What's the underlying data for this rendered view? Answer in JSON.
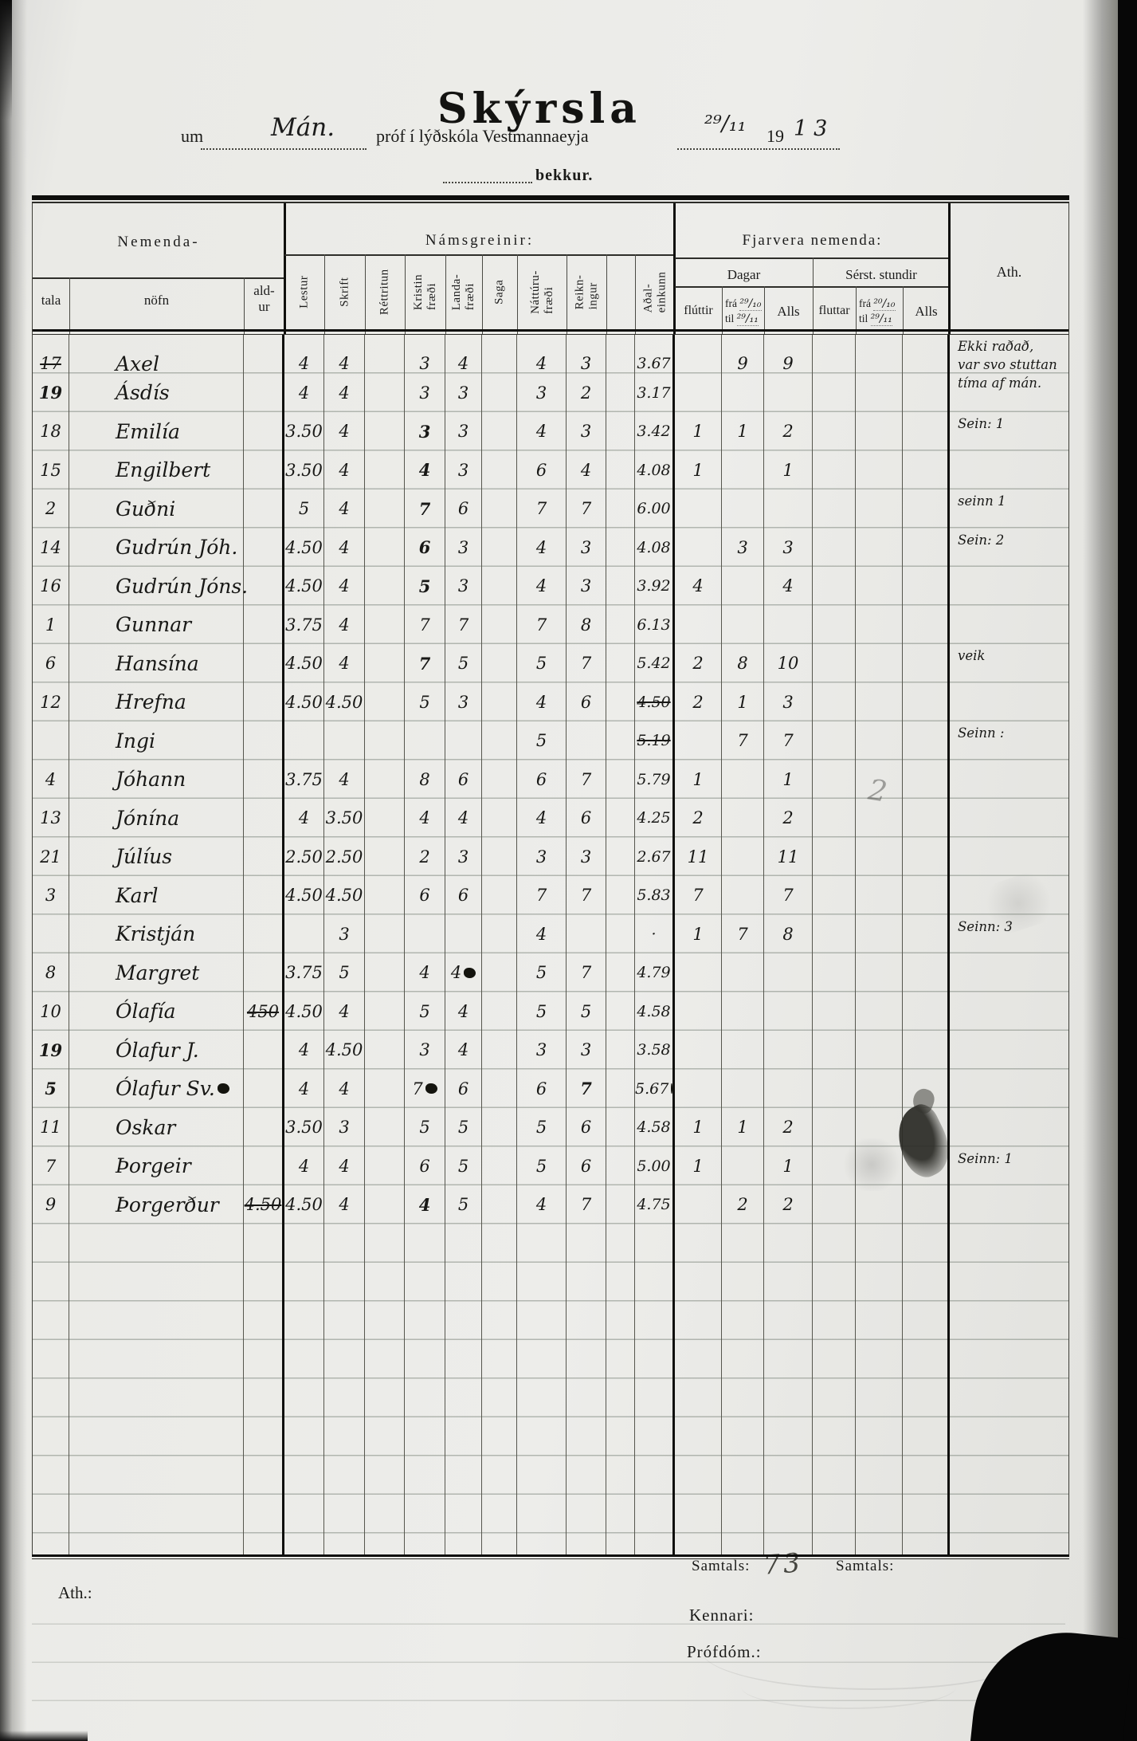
{
  "header": {
    "title": "Skýrsla",
    "um": "um",
    "subject_hw": "Mán.",
    "prof_line": "próf í lýðskóla Vestmannaeyja",
    "date_hw": "²⁹/₁₁",
    "year_print": "19",
    "year_hw": "13",
    "bekkur": "bekkur."
  },
  "table_head": {
    "nemenda": "Nemenda-",
    "tala": "tala",
    "nofn": "nöfn",
    "aldur": "ald-\nur",
    "namsgreinir": "Námsgreinir:",
    "subjects": [
      "Lestur",
      "Skrift",
      "Réttritun",
      "Kristin\nfræði",
      "Landa-\nfræði",
      "Saga",
      "Náttúru-\nfræði",
      "Reikn-\ningur",
      "",
      "Aðal-\neinkunn"
    ],
    "fjarvera": "Fjarvera nemenda:",
    "dagar": "Dagar",
    "serst": "Sérst. stundir",
    "fluttir": "flúttir",
    "fluttar": "fluttar",
    "alls": "Alls",
    "fra": "frá",
    "til": "til",
    "dagar_fra_hw": "²⁹/₁₀",
    "dagar_til_hw": "²⁹/₁₁",
    "stundir_fra_hw": "²⁰/₁₀",
    "stundir_til_hw": "²⁹/₁₁",
    "ath": "Ath."
  },
  "rows": [
    {
      "tala": "17",
      "tala_class": "struck",
      "nofn": "Axel",
      "lestur": "4",
      "skrift": "4",
      "kristin": "3",
      "landa": "4",
      "natturu": "4",
      "reikningur": "3",
      "adal": "3.67",
      "d_fratil": "9",
      "d_alls": "9",
      "ath": "Ekki raðað,\nvar svo stuttan\ntíma af mán."
    },
    {
      "tala": "19",
      "tala_class": "bold",
      "nofn": "Ásdís",
      "lestur": "4",
      "skrift": "4",
      "kristin": "3",
      "landa": "3",
      "natturu": "3",
      "reikningur": "2",
      "adal": "3.17"
    },
    {
      "tala": "18",
      "nofn": "Emilía",
      "lestur": "3.50",
      "skrift": "4",
      "kristin": "3",
      "kristin_class": "bold",
      "landa": "3",
      "natturu": "4",
      "reikningur": "3",
      "adal": "3.42",
      "d_fluttir": "1",
      "d_fratil": "1",
      "d_alls": "2",
      "ath": "Sein: 1"
    },
    {
      "tala": "15",
      "nofn": "Engilbert",
      "lestur": "3.50",
      "skrift": "4",
      "kristin": "4",
      "kristin_class": "bold",
      "landa": "3",
      "natturu": "6",
      "reikningur": "4",
      "adal": "4.08",
      "d_fluttir": "1",
      "d_alls": "1"
    },
    {
      "tala": "2",
      "nofn": "Guðni",
      "lestur": "5",
      "skrift": "4",
      "kristin": "7",
      "kristin_class": "bold",
      "landa": "6",
      "natturu": "7",
      "reikningur": "7",
      "adal": "6.00",
      "ath": "seinn 1"
    },
    {
      "tala": "14",
      "nofn": "Gudrún Jóh.",
      "lestur": "4.50",
      "skrift": "4",
      "kristin": "6",
      "kristin_class": "bold",
      "landa": "3",
      "natturu": "4",
      "reikningur": "3",
      "adal": "4.08",
      "d_fratil": "3",
      "d_alls": "3",
      "ath": "Sein: 2"
    },
    {
      "tala": "16",
      "nofn": "Gudrún Jóns.",
      "lestur": "4.50",
      "skrift": "4",
      "kristin": "5",
      "kristin_class": "bold",
      "landa": "3",
      "natturu": "4",
      "reikningur": "3",
      "adal": "3.92",
      "d_fluttir": "4",
      "d_alls": "4"
    },
    {
      "tala": "1",
      "nofn": "Gunnar",
      "lestur": "3.75",
      "skrift": "4",
      "kristin": "7",
      "landa": "7",
      "natturu": "7",
      "reikningur": "8",
      "adal": "6.13"
    },
    {
      "tala": "6",
      "nofn": "Hansína",
      "lestur": "4.50",
      "skrift": "4",
      "kristin": "7",
      "kristin_class": "bold",
      "landa": "5",
      "natturu": "5",
      "reikningur": "7",
      "adal": "5.42",
      "d_fluttir": "2",
      "d_fratil": "8",
      "d_alls": "10",
      "ath": "veik"
    },
    {
      "tala": "12",
      "nofn": "Hrefna",
      "lestur": "4.50",
      "skrift": "4.50",
      "kristin": "5",
      "landa": "3",
      "natturu": "4",
      "reikningur": "6",
      "adal": "4.50",
      "adal_class": "struck",
      "d_fluttir": "2",
      "d_fratil": "1",
      "d_alls": "3"
    },
    {
      "nofn": "Ingi",
      "natturu": "5",
      "adal": "5.19",
      "adal_class": "struck",
      "d_fratil": "7",
      "d_alls": "7",
      "ath": "Seinn :"
    },
    {
      "tala": "4",
      "nofn": "Jóhann",
      "lestur": "3.75",
      "skrift": "4",
      "kristin": "8",
      "landa": "6",
      "natturu": "6",
      "reikningur": "7",
      "adal": "5.79",
      "d_fluttir": "1",
      "d_alls": "1"
    },
    {
      "tala": "13",
      "nofn": "Jónína",
      "lestur": "4",
      "skrift": "3.50",
      "kristin": "4",
      "landa": "4",
      "natturu": "4",
      "reikningur": "6",
      "adal": "4.25",
      "d_fluttir": "2",
      "d_alls": "2"
    },
    {
      "tala": "21",
      "nofn": "Júlíus",
      "lestur": "2.50",
      "skrift": "2.50",
      "kristin": "2",
      "landa": "3",
      "natturu": "3",
      "reikningur": "3",
      "adal": "2.67",
      "d_fluttir": "11",
      "d_alls": "11"
    },
    {
      "tala": "3",
      "nofn": "Karl",
      "lestur": "4.50",
      "skrift": "4.50",
      "kristin": "6",
      "landa": "6",
      "natturu": "7",
      "reikningur": "7",
      "adal": "5.83",
      "d_fluttir": "7",
      "d_alls": "7"
    },
    {
      "nofn": "Kristján",
      "skrift": "3",
      "natturu": "4",
      "adal": "·",
      "d_fluttir": "1",
      "d_fratil": "7",
      "d_alls": "8",
      "ath": "Seinn: 3"
    },
    {
      "tala": "8",
      "nofn": "Margret",
      "lestur": "3.75",
      "skrift": "5",
      "kristin": "4",
      "landa": "4",
      "landa_class": "blot",
      "natturu": "5",
      "reikningur": "7",
      "adal": "4.79"
    },
    {
      "tala": "10",
      "nofn": "Ólafía",
      "aldur": "450",
      "aldur_class": "struck",
      "lestur": "4.50",
      "skrift": "4",
      "kristin": "5",
      "landa": "4",
      "natturu": "5",
      "reikningur": "5",
      "adal": "4.58"
    },
    {
      "tala": "19",
      "tala_class": "bold",
      "nofn": "Ólafur J.",
      "lestur": "4",
      "skrift": "4.50",
      "kristin": "3",
      "landa": "4",
      "natturu": "3",
      "reikningur": "3",
      "adal": "3.58"
    },
    {
      "tala": "5",
      "tala_class": "bold",
      "nofn": "Ólafur Sv.",
      "nofn_class": "blot",
      "lestur": "4",
      "skrift": "4",
      "kristin": "7",
      "kristin_class": "blot",
      "landa": "6",
      "natturu": "6",
      "reikningur": "7",
      "reikningur_class": "bold",
      "adal": "5.67",
      "adal_class": "blot"
    },
    {
      "tala": "11",
      "nofn": "Oskar",
      "lestur": "3.50",
      "skrift": "3",
      "kristin": "5",
      "landa": "5",
      "natturu": "5",
      "reikningur": "6",
      "adal": "4.58",
      "d_fluttir": "1",
      "d_fratil": "1",
      "d_alls": "2"
    },
    {
      "tala": "7",
      "nofn": "Þorgeir",
      "lestur": "4",
      "skrift": "4",
      "kristin": "6",
      "landa": "5",
      "natturu": "5",
      "reikningur": "6",
      "adal": "5.00",
      "d_fluttir": "1",
      "d_alls": "1",
      "ath": "Seinn: 1"
    },
    {
      "tala": "9",
      "nofn": "Þorgerður",
      "aldur": "4.50",
      "aldur_class": "struck",
      "lestur": "4.50",
      "skrift": "4",
      "kristin": "4",
      "kristin_class": "bold",
      "landa": "5",
      "natturu": "4",
      "reikningur": "7",
      "adal": "4.75",
      "d_fratil": "2",
      "d_alls": "2"
    }
  ],
  "margin_marks": {
    "pencil_2": "2"
  },
  "footer": {
    "ath_label": "Ath.:",
    "samtals_label_1": "Samtals:",
    "samtals_value_1": "73",
    "samtals_label_2": "Samtals:",
    "kennari": "Kennari:",
    "profdom": "Prófdóm.:"
  }
}
